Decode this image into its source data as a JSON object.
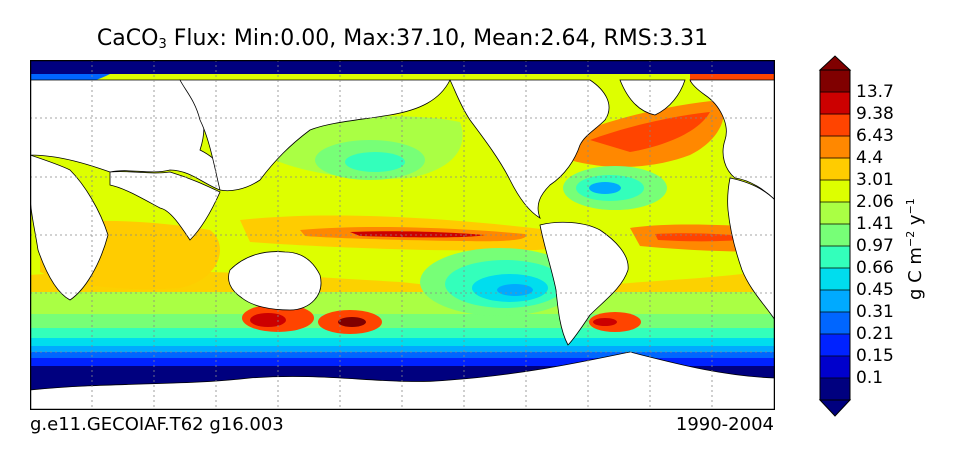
{
  "title": {
    "prefix": "CaCO",
    "subscript": "3",
    "stats": "Flux: Min:0.00, Max:37.10, Mean:2.64, RMS:3.31"
  },
  "footer": {
    "left": "g.e11.GECOIAF.T62 g16.003",
    "right": "1990-2004"
  },
  "chart_data": {
    "type": "heatmap",
    "title": "CaCO3 Flux: Min:0.00, Max:37.10, Mean:2.64, RMS:3.31",
    "statistics": {
      "min": 0.0,
      "max": 37.1,
      "mean": 2.64,
      "rms": 3.31
    },
    "grid": true,
    "colorbar": {
      "placement": "right",
      "extend": "both",
      "units": "g C m^-2 y^-1",
      "tick_labels": [
        "0.1",
        "0.15",
        "0.21",
        "0.31",
        "0.45",
        "0.66",
        "0.97",
        "1.41",
        "2.06",
        "3.01",
        "4.4",
        "6.43",
        "9.38",
        "13.7"
      ],
      "colors": [
        "#00007f",
        "#0000cc",
        "#0022ff",
        "#0066ff",
        "#00aaff",
        "#00ddee",
        "#33ffbb",
        "#77ff77",
        "#aaff44",
        "#ddff00",
        "#ffcc00",
        "#ff8800",
        "#ff4400",
        "#cc0000",
        "#800000"
      ]
    }
  },
  "colors": {
    "land": "#ffffff",
    "ice": "#00007f",
    "grid": "#888888",
    "frame": "#000000"
  }
}
